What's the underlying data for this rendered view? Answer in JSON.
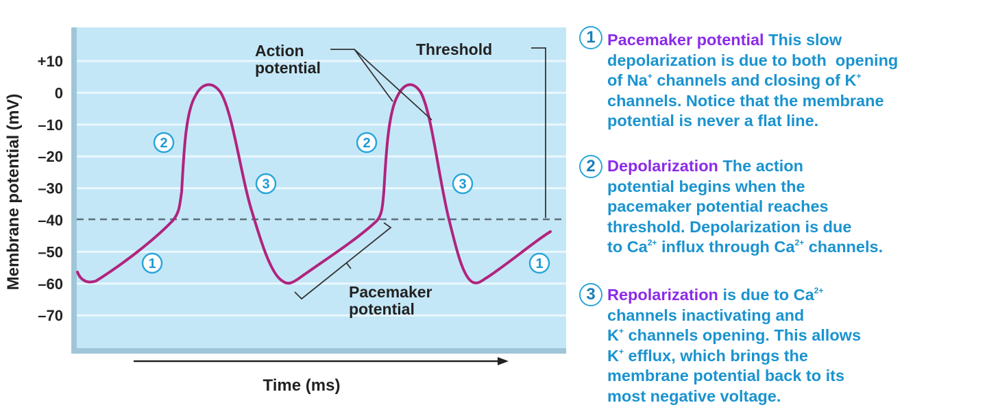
{
  "chart": {
    "y_axis_label": "Membrane potential (mV)",
    "x_axis_label": "Time (ms)",
    "y_ticks": [
      "+10",
      "0",
      "–10",
      "–20",
      "–30",
      "–40",
      "–50",
      "–60",
      "–70"
    ],
    "threshold_mV": -40,
    "annotations": {
      "action_potential": [
        "Action",
        "potential"
      ],
      "threshold": "Threshold",
      "pacemaker_potential": [
        "Pacemaker",
        "potential"
      ]
    },
    "phase_markers": [
      "1",
      "2",
      "3"
    ],
    "colors": {
      "background": "#c4e7f7",
      "trace": "#b0247e",
      "marker": "#1b9ad6",
      "description_title": "#8b2be8",
      "description_text": "#1a93cf"
    }
  },
  "descriptions": [
    {
      "number": "1",
      "title": "Pacemaker potential",
      "lines": [
        [
          {
            "text": " This slow"
          }
        ],
        [
          {
            "text": "depolarization is due to both  opening"
          }
        ],
        [
          {
            "text": "of Na"
          },
          {
            "text": "+",
            "sup": true
          },
          {
            "text": " channels and closing of K"
          },
          {
            "text": "+",
            "sup": true
          }
        ],
        [
          {
            "text": "channels. Notice that the membrane"
          }
        ],
        [
          {
            "text": "potential is never a flat line."
          }
        ]
      ]
    },
    {
      "number": "2",
      "title": "Depolarization",
      "lines": [
        [
          {
            "text": " The action"
          }
        ],
        [
          {
            "text": "potential begins when the"
          }
        ],
        [
          {
            "text": "pacemaker potential reaches"
          }
        ],
        [
          {
            "text": "threshold. Depolarization is due"
          }
        ],
        [
          {
            "text": "to Ca"
          },
          {
            "text": "2+",
            "sup": true
          },
          {
            "text": " influx through Ca"
          },
          {
            "text": "2+",
            "sup": true
          },
          {
            "text": " channels."
          }
        ]
      ]
    },
    {
      "number": "3",
      "title": "Repolarization",
      "lines": [
        [
          {
            "text": " is due to Ca"
          },
          {
            "text": "2+",
            "sup": true
          }
        ],
        [
          {
            "text": "channels inactivating and"
          }
        ],
        [
          {
            "text": "K"
          },
          {
            "text": "+",
            "sup": true
          },
          {
            "text": " channels opening. This allows"
          }
        ],
        [
          {
            "text": "K"
          },
          {
            "text": "+",
            "sup": true
          },
          {
            "text": " efflux, which brings the"
          }
        ],
        [
          {
            "text": "membrane potential back to its"
          }
        ],
        [
          {
            "text": "most negative voltage."
          }
        ]
      ]
    }
  ]
}
